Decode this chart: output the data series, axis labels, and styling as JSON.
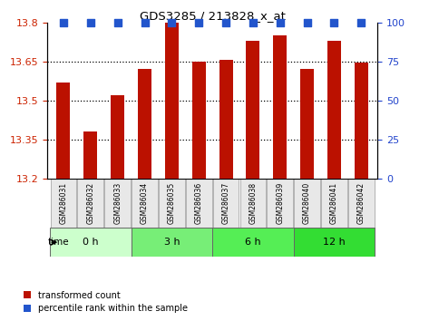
{
  "title": "GDS3285 / 213828_x_at",
  "samples": [
    "GSM286031",
    "GSM286032",
    "GSM286033",
    "GSM286034",
    "GSM286035",
    "GSM286036",
    "GSM286037",
    "GSM286038",
    "GSM286039",
    "GSM286040",
    "GSM286041",
    "GSM286042"
  ],
  "bar_values": [
    13.57,
    13.38,
    13.52,
    13.62,
    13.8,
    13.65,
    13.655,
    13.73,
    13.75,
    13.62,
    13.73,
    13.645
  ],
  "percentile_values": [
    100,
    100,
    100,
    100,
    100,
    100,
    100,
    100,
    100,
    100,
    100,
    100
  ],
  "bar_color": "#bb1100",
  "percentile_color": "#2255cc",
  "ylim_left": [
    13.2,
    13.8
  ],
  "ylim_right": [
    0,
    100
  ],
  "yticks_left": [
    13.2,
    13.35,
    13.5,
    13.65,
    13.8
  ],
  "yticks_right": [
    0,
    25,
    50,
    75,
    100
  ],
  "groups": [
    {
      "label": "0 h",
      "indices": [
        0,
        1,
        2
      ],
      "color": "#ccffcc"
    },
    {
      "label": "3 h",
      "indices": [
        3,
        4,
        5
      ],
      "color": "#77ee77"
    },
    {
      "label": "6 h",
      "indices": [
        6,
        7,
        8
      ],
      "color": "#55ee55"
    },
    {
      "label": "12 h",
      "indices": [
        9,
        10,
        11
      ],
      "color": "#33dd33"
    }
  ],
  "bar_width": 0.5,
  "tick_color_left": "#cc2200",
  "tick_color_right": "#2244cc",
  "legend_items": [
    {
      "label": "transformed count",
      "color": "#bb1100"
    },
    {
      "label": "percentile rank within the sample",
      "color": "#2255cc"
    }
  ]
}
